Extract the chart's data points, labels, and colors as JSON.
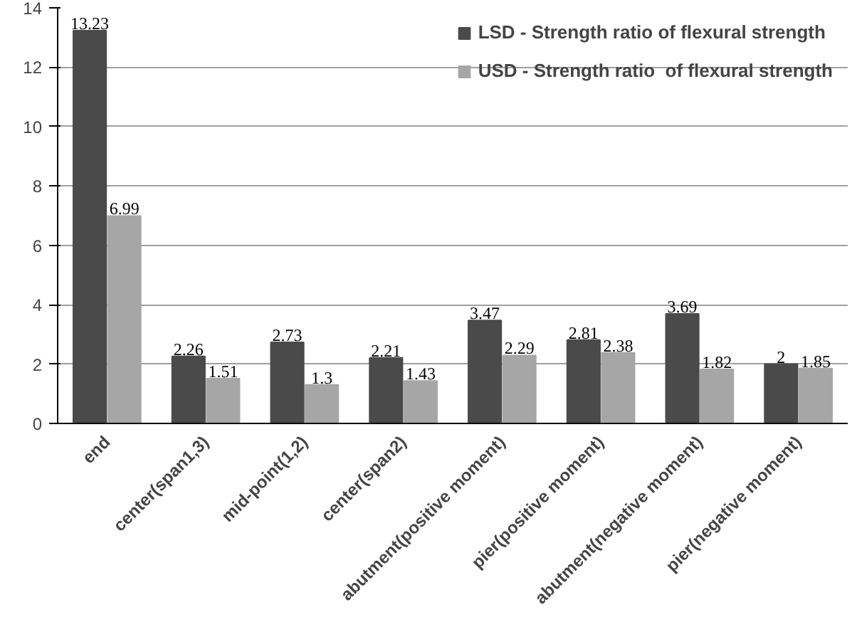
{
  "chart_data": {
    "type": "bar",
    "categories": [
      "end",
      "center(span1,3)",
      "mid-point(1,2)",
      "center(span2)",
      "abutment(positive moment)",
      "pier(positive moment)",
      "abutment(negative moment)",
      "pier(negative moment)"
    ],
    "series": [
      {
        "name": "LSD - Strength ratio of flexural strength",
        "color": "#4a4a4a",
        "values": [
          13.23,
          2.26,
          2.73,
          2.21,
          3.47,
          2.81,
          3.69,
          2
        ]
      },
      {
        "name": "USD - Strength ratio  of flexural strength",
        "color": "#a6a6a6",
        "values": [
          6.99,
          1.51,
          1.3,
          1.43,
          2.29,
          2.38,
          1.82,
          1.85
        ]
      }
    ],
    "ylim": [
      0,
      14
    ],
    "yticks": [
      0,
      2,
      4,
      6,
      8,
      10,
      12,
      14
    ],
    "grid": "y",
    "legend": "top right",
    "data_labels": true
  }
}
